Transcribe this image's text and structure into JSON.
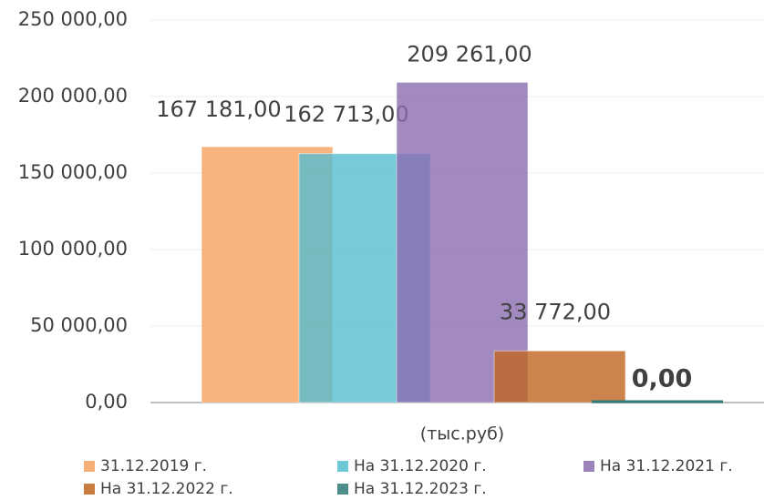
{
  "chart_data": {
    "type": "bar",
    "categories": [
      "(тыс.руб)"
    ],
    "series": [
      {
        "name": "31.12.2019 г.",
        "color": "#f7a15e",
        "values": [
          167181
        ],
        "value_labels": [
          "167 181,00"
        ]
      },
      {
        "name": "На 31.12.2020 г.",
        "color": "#56bccf",
        "values": [
          162713
        ],
        "value_labels": [
          "162 713,00"
        ]
      },
      {
        "name": "На 31.12.2021 г.",
        "color": "#8b6db0",
        "values": [
          209261
        ],
        "value_labels": [
          "209 261,00"
        ]
      },
      {
        "name": "На 31.12.2022 г.",
        "color": "#c0651f",
        "values": [
          33772
        ],
        "value_labels": [
          "33 772,00"
        ]
      },
      {
        "name": "На 31.12.2023 г.",
        "color": "#2e7a78",
        "values": [
          0
        ],
        "value_labels": [
          "0,00"
        ]
      }
    ],
    "ylim": [
      0,
      250000
    ],
    "yticks": [
      {
        "value": 0,
        "label": "0,00"
      },
      {
        "value": 50000,
        "label": "50 000,00"
      },
      {
        "value": 100000,
        "label": "100 000,00"
      },
      {
        "value": 150000,
        "label": "150 000,00"
      },
      {
        "value": 200000,
        "label": "200 000,00"
      },
      {
        "value": 250000,
        "label": "250 000,00"
      }
    ],
    "grid": true
  }
}
